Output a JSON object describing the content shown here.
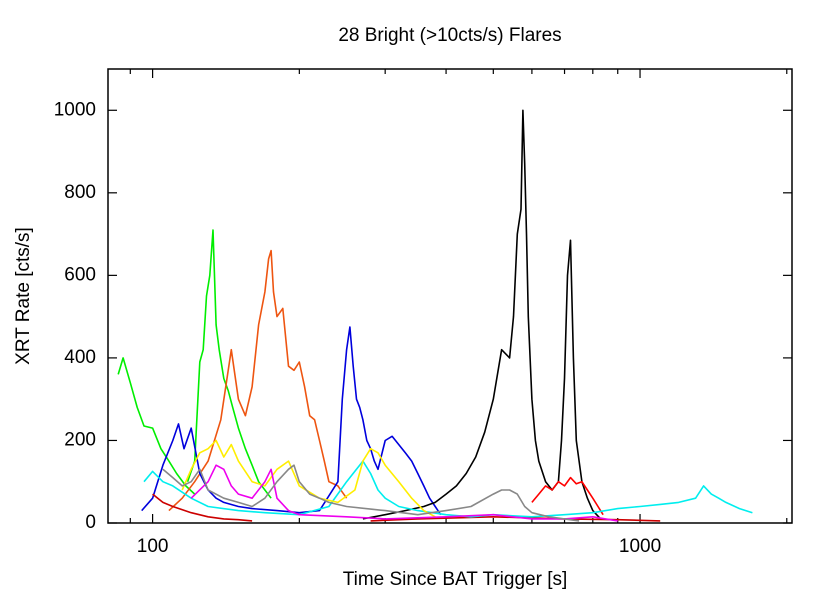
{
  "chart_data": {
    "type": "line",
    "title": "28 Bright (>10cts/s) Flares",
    "x_label": "Time Since BAT Trigger [s]",
    "y_label": "XRT Rate [cts/s]",
    "xscale": "log",
    "xlim": [
      81,
      2050
    ],
    "ylim": [
      0,
      1100
    ],
    "xticks": [
      100,
      1000
    ],
    "xminorticks": [
      90,
      200,
      300,
      400,
      500,
      600,
      700,
      800,
      900,
      2000
    ],
    "yticks": [
      0,
      200,
      400,
      600,
      800,
      1000
    ],
    "grid": false,
    "series": [
      {
        "color": "#00ee00",
        "x": [
          85,
          87,
          90,
          93,
          96,
          100,
          104,
          108,
          112,
          117,
          122
        ],
        "values": [
          360,
          400,
          340,
          280,
          235,
          230,
          180,
          150,
          120,
          90,
          70
        ]
      },
      {
        "color": "#00ee00",
        "x": [
          118,
          122,
          125,
          127,
          129,
          131,
          133,
          135,
          137,
          140,
          143,
          146,
          150,
          155,
          160,
          165,
          170,
          175
        ],
        "values": [
          100,
          150,
          390,
          420,
          550,
          600,
          710,
          480,
          420,
          350,
          320,
          280,
          230,
          180,
          140,
          100,
          80,
          60
        ]
      },
      {
        "color": "#ee5511",
        "x": [
          108,
          115,
          122,
          130,
          138,
          145,
          150,
          155,
          160,
          165,
          170,
          173,
          175,
          177,
          180,
          185,
          190,
          195,
          200,
          205,
          210,
          215,
          220,
          225,
          230,
          240,
          250
        ],
        "values": [
          30,
          60,
          100,
          150,
          250,
          420,
          300,
          260,
          330,
          480,
          560,
          640,
          660,
          560,
          500,
          520,
          380,
          370,
          390,
          330,
          260,
          250,
          200,
          150,
          100,
          90,
          60
        ]
      },
      {
        "color": "#0000dd",
        "x": [
          95,
          100,
          105,
          110,
          113,
          116,
          120,
          125,
          130,
          135,
          140,
          150,
          160,
          180,
          200,
          220,
          240,
          245,
          250,
          254,
          258,
          262,
          266,
          270,
          275,
          280,
          285,
          290,
          300,
          310,
          320,
          330,
          340,
          350,
          360,
          370,
          380,
          390
        ],
        "values": [
          30,
          60,
          140,
          200,
          240,
          180,
          230,
          120,
          80,
          60,
          50,
          40,
          35,
          30,
          25,
          30,
          100,
          300,
          420,
          475,
          380,
          300,
          280,
          250,
          200,
          180,
          150,
          130,
          200,
          210,
          190,
          170,
          150,
          120,
          90,
          60,
          40,
          20
        ]
      },
      {
        "color": "#000000",
        "x": [
          270,
          300,
          330,
          360,
          380,
          400,
          420,
          440,
          460,
          480,
          500,
          520,
          540,
          550,
          560,
          570,
          575,
          580,
          585,
          590,
          600,
          610,
          620,
          640,
          660,
          680,
          690,
          700,
          710,
          720,
          730,
          740,
          760,
          780,
          800,
          830
        ],
        "values": [
          10,
          20,
          30,
          40,
          50,
          70,
          90,
          120,
          160,
          220,
          300,
          420,
          400,
          500,
          700,
          760,
          1000,
          870,
          700,
          500,
          300,
          200,
          150,
          100,
          80,
          100,
          200,
          350,
          600,
          685,
          400,
          200,
          100,
          60,
          30,
          10
        ]
      },
      {
        "color": "#ff0000",
        "x": [
          600,
          620,
          640,
          660,
          680,
          700,
          720,
          740,
          760,
          780,
          800,
          820,
          840
        ],
        "values": [
          50,
          70,
          90,
          80,
          100,
          90,
          110,
          95,
          100,
          80,
          60,
          40,
          20
        ]
      },
      {
        "color": "#cc0000",
        "x": [
          100,
          105,
          110,
          120,
          130,
          140,
          150,
          160
        ],
        "values": [
          70,
          50,
          40,
          25,
          15,
          10,
          8,
          5
        ]
      },
      {
        "color": "#cc0000",
        "x": [
          280,
          350,
          500,
          700,
          900,
          1100
        ],
        "values": [
          5,
          10,
          15,
          10,
          8,
          5
        ]
      },
      {
        "color": "#00eeee",
        "x": [
          96,
          100,
          105,
          110,
          120,
          130,
          150,
          170,
          200,
          230,
          250,
          270,
          280,
          290,
          300,
          320,
          350,
          400,
          450,
          500,
          600,
          700,
          800,
          900,
          1000,
          1100,
          1200,
          1300,
          1350,
          1400,
          1450,
          1500,
          1600,
          1700
        ],
        "values": [
          100,
          125,
          100,
          90,
          60,
          40,
          30,
          25,
          20,
          40,
          100,
          150,
          120,
          80,
          60,
          40,
          30,
          20,
          15,
          20,
          15,
          20,
          25,
          35,
          40,
          45,
          50,
          60,
          90,
          70,
          60,
          50,
          35,
          25
        ]
      },
      {
        "color": "#ffee00",
        "x": [
          115,
          120,
          125,
          130,
          135,
          140,
          145,
          150,
          160,
          170,
          180,
          190,
          200,
          220,
          240,
          260,
          270,
          280,
          290,
          300,
          320,
          340,
          360,
          380
        ],
        "values": [
          80,
          130,
          170,
          180,
          200,
          160,
          190,
          150,
          100,
          90,
          130,
          150,
          90,
          60,
          50,
          80,
          150,
          180,
          170,
          140,
          100,
          60,
          30,
          15
        ]
      },
      {
        "color": "#ee00ee",
        "x": [
          120,
          130,
          135,
          140,
          145,
          150,
          160,
          170,
          175,
          180,
          190,
          200,
          250,
          300,
          400,
          500,
          600,
          700,
          800,
          900
        ],
        "values": [
          60,
          100,
          140,
          130,
          90,
          70,
          60,
          100,
          130,
          60,
          30,
          20,
          15,
          10,
          15,
          20,
          10,
          10,
          15,
          5
        ]
      },
      {
        "color": "#888888",
        "x": [
          105,
          110,
          115,
          120,
          125,
          130,
          140,
          150,
          160,
          170,
          180,
          190,
          195,
          200,
          210,
          220,
          230,
          250,
          300,
          350,
          400,
          450,
          500,
          520,
          540,
          560,
          580,
          600,
          650,
          700,
          750
        ],
        "values": [
          130,
          110,
          90,
          100,
          130,
          80,
          60,
          50,
          40,
          60,
          100,
          130,
          140,
          100,
          70,
          60,
          50,
          40,
          30,
          20,
          30,
          40,
          70,
          80,
          80,
          70,
          40,
          25,
          15,
          10,
          5
        ]
      }
    ]
  }
}
